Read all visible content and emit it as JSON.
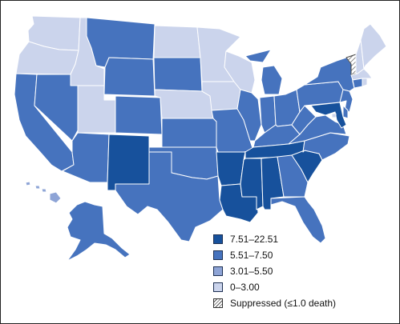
{
  "colors": {
    "c4": "#17519c",
    "c3": "#4673be",
    "c2": "#8ea4d6",
    "c1": "#cbd4ec",
    "border": "#ffffff",
    "outline": "#1f3f7a"
  },
  "legend": {
    "items": [
      {
        "label": "7.51–22.51",
        "class": "c4"
      },
      {
        "label": "5.51–7.50",
        "class": "c3"
      },
      {
        "label": "3.01–5.50",
        "class": "c2"
      },
      {
        "label": "0–3.00",
        "class": "c1"
      },
      {
        "label": "Suppressed (≤1.0 death)",
        "class": "suppressed"
      }
    ]
  },
  "states": [
    {
      "name": "WA",
      "class": "c1"
    },
    {
      "name": "OR",
      "class": "c1"
    },
    {
      "name": "CA",
      "class": "c3"
    },
    {
      "name": "ID",
      "class": "c1"
    },
    {
      "name": "NV",
      "class": "c3"
    },
    {
      "name": "UT",
      "class": "c1"
    },
    {
      "name": "AZ",
      "class": "c3"
    },
    {
      "name": "MT",
      "class": "c3"
    },
    {
      "name": "WY",
      "class": "c3"
    },
    {
      "name": "CO",
      "class": "c3"
    },
    {
      "name": "NM",
      "class": "c4"
    },
    {
      "name": "ND",
      "class": "c1"
    },
    {
      "name": "SD",
      "class": "c3"
    },
    {
      "name": "NE",
      "class": "c1"
    },
    {
      "name": "KS",
      "class": "c3"
    },
    {
      "name": "OK",
      "class": "c3"
    },
    {
      "name": "TX",
      "class": "c3"
    },
    {
      "name": "MN",
      "class": "c1"
    },
    {
      "name": "IA",
      "class": "c1"
    },
    {
      "name": "MO",
      "class": "c3"
    },
    {
      "name": "AR",
      "class": "c4"
    },
    {
      "name": "LA",
      "class": "c4"
    },
    {
      "name": "WI",
      "class": "c1"
    },
    {
      "name": "IL",
      "class": "c3"
    },
    {
      "name": "MI",
      "class": "c3"
    },
    {
      "name": "IN",
      "class": "c3"
    },
    {
      "name": "OH",
      "class": "c3"
    },
    {
      "name": "KY",
      "class": "c3"
    },
    {
      "name": "TN",
      "class": "c4"
    },
    {
      "name": "MS",
      "class": "c4"
    },
    {
      "name": "AL",
      "class": "c4"
    },
    {
      "name": "GA",
      "class": "c3"
    },
    {
      "name": "FL",
      "class": "c3"
    },
    {
      "name": "SC",
      "class": "c4"
    },
    {
      "name": "NC",
      "class": "c3"
    },
    {
      "name": "VA",
      "class": "c3"
    },
    {
      "name": "WV",
      "class": "c3"
    },
    {
      "name": "PA",
      "class": "c3"
    },
    {
      "name": "NY",
      "class": "c3"
    },
    {
      "name": "VT",
      "class": "suppressed"
    },
    {
      "name": "NH",
      "class": "c1"
    },
    {
      "name": "ME",
      "class": "c1"
    },
    {
      "name": "MA",
      "class": "c1"
    },
    {
      "name": "CT",
      "class": "c3"
    },
    {
      "name": "RI",
      "class": "c1"
    },
    {
      "name": "NJ",
      "class": "c3"
    },
    {
      "name": "DE",
      "class": "c3"
    },
    {
      "name": "MD",
      "class": "c4"
    },
    {
      "name": "DC",
      "class": "c1"
    },
    {
      "name": "AK",
      "class": "c3"
    },
    {
      "name": "HI",
      "class": "c2"
    }
  ]
}
